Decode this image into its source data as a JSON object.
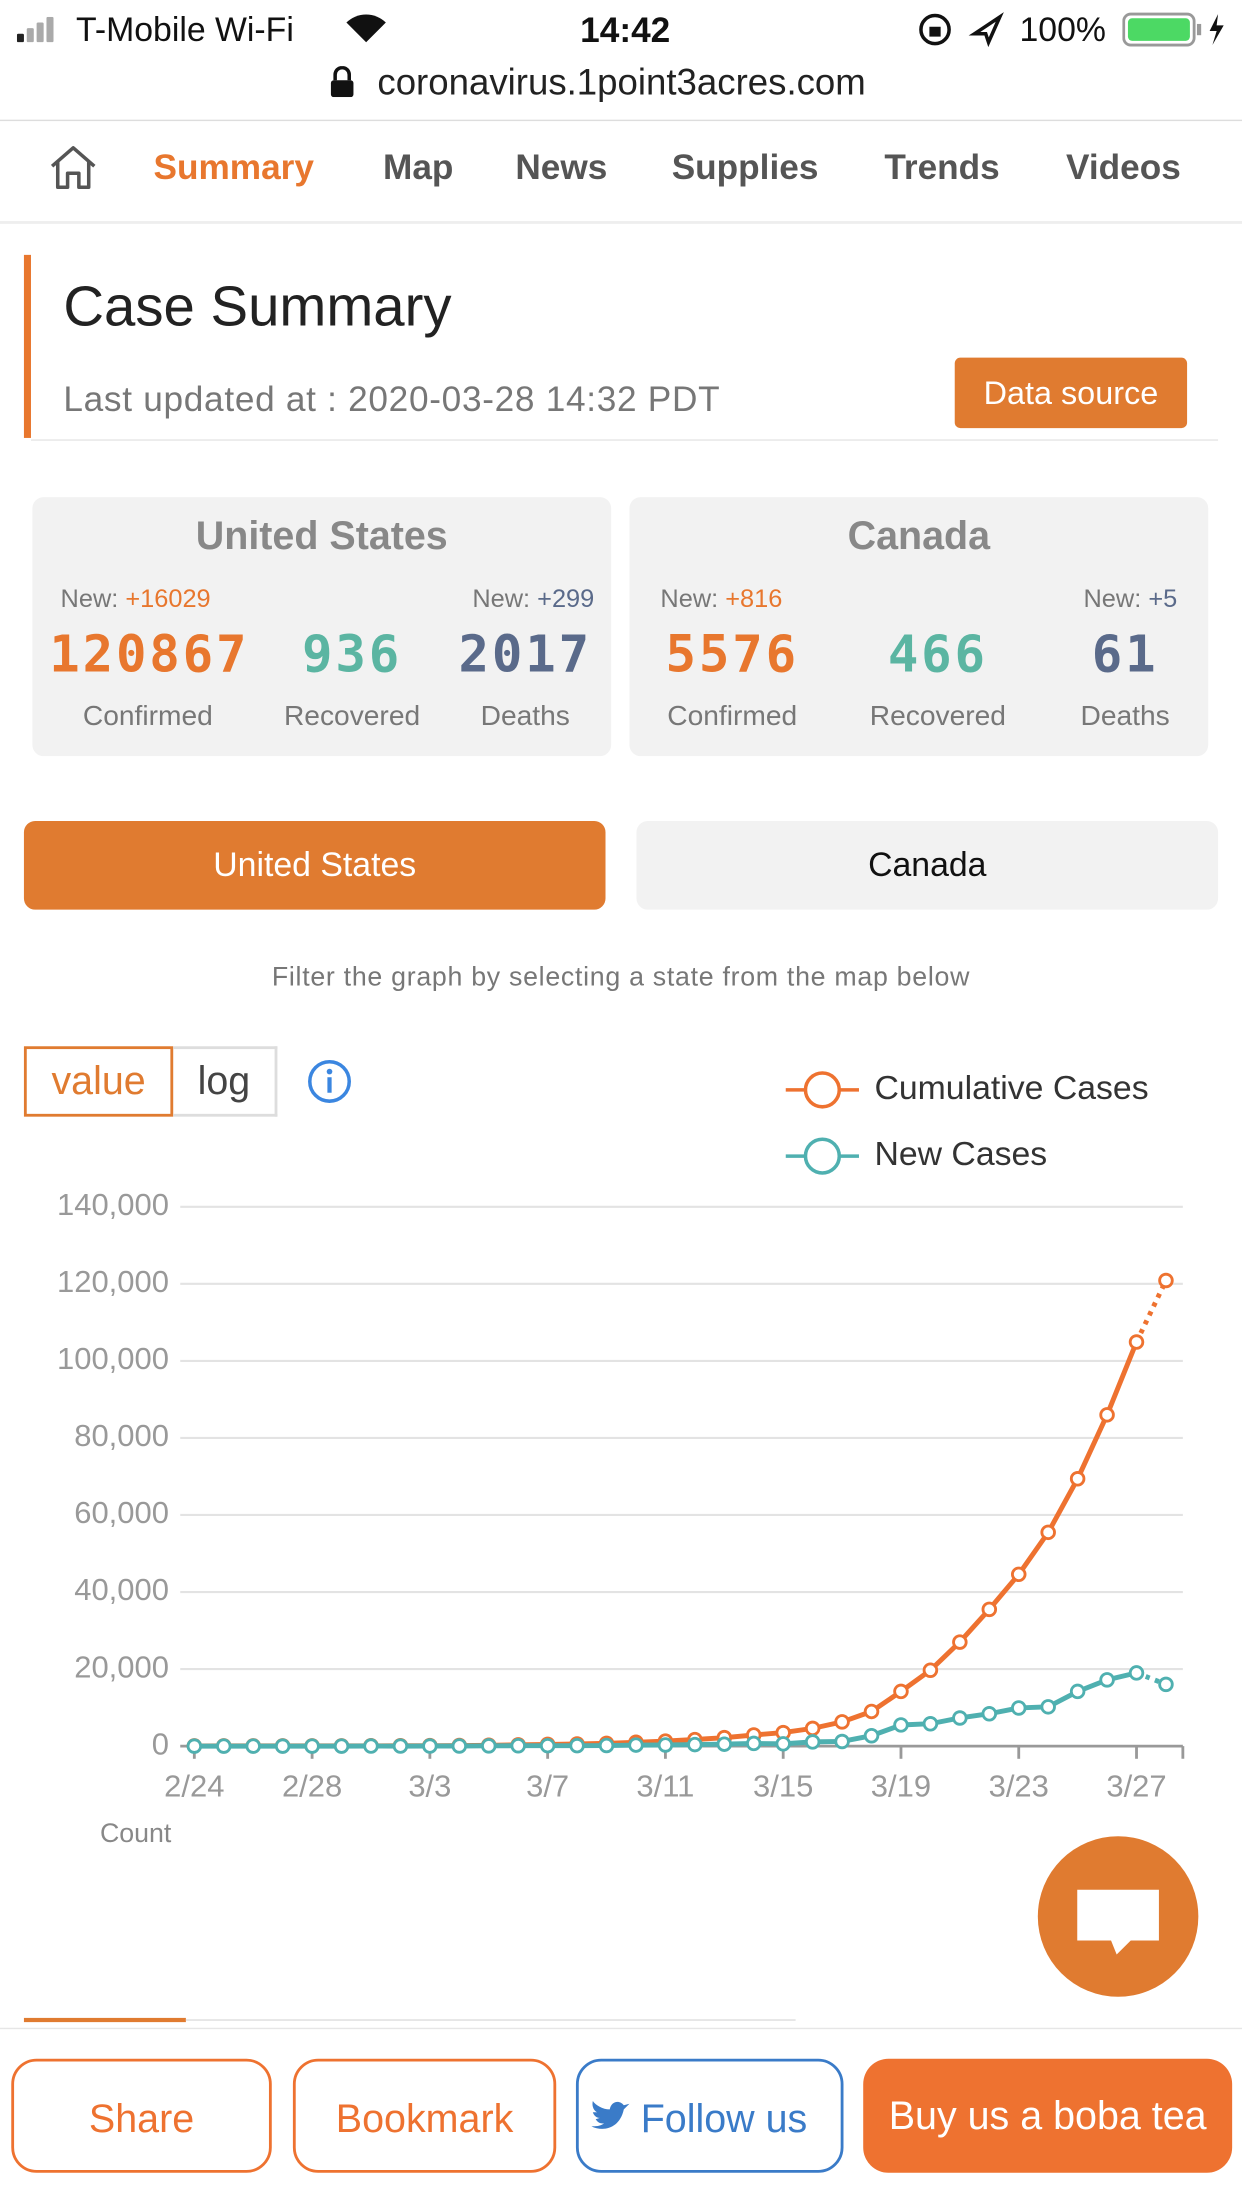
{
  "status_bar": {
    "carrier": "T-Mobile Wi-Fi",
    "time": "14:42",
    "battery": "100%",
    "url": "coronavirus.1point3acres.com"
  },
  "nav": {
    "items": [
      "Summary",
      "Map",
      "News",
      "Supplies",
      "Trends",
      "Videos"
    ]
  },
  "summary": {
    "title": "Case Summary",
    "updated": "Last updated at : 2020-03-28 14:32 PDT",
    "source_button": "Data source"
  },
  "cards": [
    {
      "country": "United States",
      "new_label": "New:",
      "new_confirmed": "+16029",
      "new_deaths": "+299",
      "confirmed": "120867",
      "recovered": "936",
      "deaths": "2017",
      "confirmed_label": "Confirmed",
      "recovered_label": "Recovered",
      "deaths_label": "Deaths"
    },
    {
      "country": "Canada",
      "new_label": "New:",
      "new_confirmed": "+816",
      "new_deaths": "+5",
      "confirmed": "5576",
      "recovered": "466",
      "deaths": "61",
      "confirmed_label": "Confirmed",
      "recovered_label": "Recovered",
      "deaths_label": "Deaths"
    }
  ],
  "tabs": [
    "United States",
    "Canada"
  ],
  "filter_note": "Filter the graph by selecting a state from the map below",
  "scale_toggle": [
    "value",
    "log"
  ],
  "chart_data": {
    "type": "line",
    "y_label": "Count",
    "categories": [
      "2/24",
      null,
      null,
      null,
      "2/28",
      null,
      null,
      null,
      "3/3",
      null,
      null,
      null,
      "3/7",
      null,
      null,
      null,
      "3/11",
      null,
      null,
      null,
      "3/15",
      null,
      null,
      null,
      "3/19",
      null,
      null,
      null,
      "3/23",
      null,
      null,
      null,
      "3/27",
      null
    ],
    "series": [
      {
        "name": "Cumulative Cases",
        "color": "#ee7230",
        "last_segment": "dotted",
        "values": [
          53,
          57,
          60,
          60,
          64,
          70,
          89,
          105,
          125,
          159,
          227,
          331,
          444,
          564,
          728,
          1000,
          1300,
          1700,
          2200,
          2900,
          3500,
          4600,
          6300,
          9000,
          14200,
          19700,
          27000,
          35500,
          44600,
          55500,
          69400,
          86000,
          104900,
          120867
        ]
      },
      {
        "name": "New Cases",
        "color": "#4fb0b0",
        "last_segment": "dotted",
        "values": [
          0,
          4,
          3,
          0,
          4,
          6,
          19,
          16,
          20,
          34,
          68,
          104,
          113,
          120,
          164,
          272,
          300,
          400,
          500,
          700,
          600,
          1100,
          1200,
          2700,
          5500,
          5800,
          7300,
          8400,
          9900,
          10200,
          14200,
          17200,
          19000,
          16029
        ]
      }
    ],
    "ylim": [
      0,
      140000
    ],
    "yticks": [
      0,
      {
        "value": 20000,
        "label": "20,000"
      },
      {
        "value": 40000,
        "label": "40,000"
      },
      {
        "value": 60000,
        "label": "60,000"
      },
      {
        "value": 80000,
        "label": "80,000"
      },
      {
        "value": 100000,
        "label": "100,000"
      },
      {
        "value": 120000,
        "label": "120,000"
      },
      {
        "value": 140000,
        "label": "140,000"
      }
    ],
    "grid": true
  },
  "bottom_buttons": [
    "Share",
    "Bookmark",
    "Follow us",
    "Buy us a boba tea"
  ]
}
